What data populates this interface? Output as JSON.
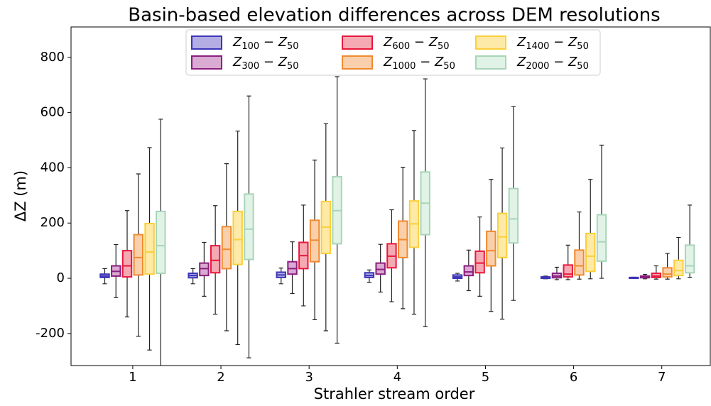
{
  "chart_data": {
    "type": "box",
    "title": "Basin-based elevation differences across DEM resolutions",
    "x_label": "Strahler stream order",
    "y_label": "ΔZ (m)",
    "x": [
      1,
      2,
      3,
      4,
      5,
      6,
      7
    ],
    "xlim": [
      0.3,
      7.55
    ],
    "xticks": [
      1,
      2,
      3,
      4,
      5,
      6,
      7
    ],
    "ylim": [
      -316,
      910
    ],
    "yticks": [
      -200,
      0,
      200,
      400,
      600,
      800
    ],
    "legend": "upper center",
    "series": [
      {
        "name": "Z100 − Z50",
        "color": "#3c35b8",
        "fill_color": "#b3ade3",
        "whislo": [
          -20,
          -20,
          -20,
          -15,
          -10,
          -2,
          -1
        ],
        "q1": [
          3,
          2,
          3,
          3,
          0,
          0,
          0
        ],
        "med": [
          8,
          10,
          12,
          10,
          5,
          2,
          1
        ],
        "q3": [
          15,
          18,
          22,
          20,
          12,
          5,
          3
        ],
        "whishi": [
          35,
          35,
          37,
          30,
          18,
          8,
          4
        ]
      },
      {
        "name": "Z300 − Z50",
        "color": "#8b1f7e",
        "fill_color": "#d9aad2",
        "whislo": [
          -70,
          -65,
          -55,
          -50,
          -45,
          -5,
          -2
        ],
        "q1": [
          8,
          10,
          15,
          15,
          10,
          2,
          2
        ],
        "med": [
          25,
          35,
          35,
          32,
          23,
          8,
          4
        ],
        "q3": [
          45,
          55,
          60,
          55,
          45,
          18,
          8
        ],
        "whishi": [
          122,
          130,
          132,
          123,
          102,
          40,
          14
        ]
      },
      {
        "name": "Z600 − Z50",
        "color": "#e8173c",
        "fill_color": "#f5a9b2",
        "whislo": [
          -140,
          -130,
          -100,
          -85,
          -65,
          -5,
          -3
        ],
        "q1": [
          5,
          20,
          35,
          38,
          20,
          5,
          3
        ],
        "med": [
          45,
          65,
          82,
          80,
          55,
          15,
          8
        ],
        "q3": [
          100,
          118,
          130,
          125,
          98,
          48,
          18
        ],
        "whishi": [
          245,
          263,
          265,
          248,
          222,
          120,
          45
        ]
      },
      {
        "name": "Z1000 − Z50",
        "color": "#f08a2e",
        "fill_color": "#f9d0ab",
        "whislo": [
          -210,
          -190,
          -150,
          -110,
          -120,
          -3,
          -3
        ],
        "q1": [
          12,
          35,
          60,
          75,
          45,
          12,
          5
        ],
        "med": [
          75,
          105,
          138,
          140,
          100,
          45,
          15
        ],
        "q3": [
          158,
          187,
          210,
          207,
          170,
          102,
          38
        ],
        "whishi": [
          378,
          415,
          428,
          402,
          358,
          240,
          90
        ]
      },
      {
        "name": "Z1400 − Z50",
        "color": "#fccf3a",
        "fill_color": "#fdeaa8",
        "whislo": [
          -260,
          -240,
          -190,
          -130,
          -148,
          -2,
          -2
        ],
        "q1": [
          15,
          50,
          90,
          112,
          75,
          25,
          10
        ],
        "med": [
          95,
          140,
          185,
          197,
          150,
          80,
          28
        ],
        "q3": [
          198,
          242,
          278,
          280,
          235,
          162,
          65
        ],
        "whishi": [
          473,
          533,
          560,
          535,
          472,
          358,
          148
        ]
      },
      {
        "name": "Z2000 − Z50",
        "color": "#a8d5b8",
        "fill_color": "#e1f2e6",
        "whislo": [
          -330,
          -288,
          -235,
          -175,
          -80,
          0,
          3
        ],
        "q1": [
          18,
          68,
          125,
          158,
          128,
          62,
          20
        ],
        "med": [
          118,
          178,
          245,
          272,
          215,
          132,
          45
        ],
        "q3": [
          242,
          305,
          368,
          385,
          325,
          230,
          120
        ],
        "whishi": [
          576,
          660,
          730,
          722,
          622,
          482,
          265
        ]
      }
    ]
  }
}
